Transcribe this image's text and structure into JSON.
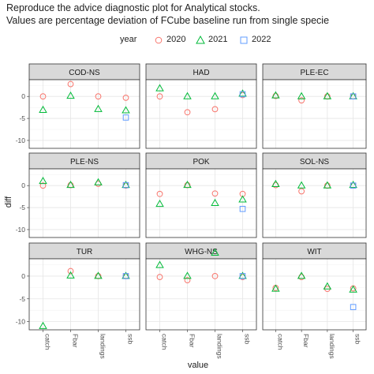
{
  "title": {
    "line1": "Reproduce the advice diagnostic plot for Analytical stocks.",
    "line2": "Values are percentage deviation of FCube baseline run from single specie"
  },
  "legend": {
    "title": "year",
    "items": [
      {
        "label": "2020",
        "shape": "circle",
        "color": "#f8766d"
      },
      {
        "label": "2021",
        "shape": "triangle",
        "color": "#00ba38"
      },
      {
        "label": "2022",
        "shape": "square",
        "color": "#619cff"
      }
    ]
  },
  "chart_data": {
    "type": "scatter",
    "facet_layout": "3x3 grid, shared axes",
    "xlabel": "value",
    "ylabel": "diff",
    "categories": [
      "catch",
      "Fbar",
      "landings",
      "ssb"
    ],
    "ylim": [
      -11.8,
      3.8
    ],
    "yticks": [
      0,
      -5,
      -10
    ],
    "grid": true,
    "series_names": [
      "2020",
      "2021",
      "2022"
    ],
    "panels": [
      {
        "name": "COD-NS",
        "points": [
          {
            "year": "2020",
            "values": [
              0,
              2.8,
              0,
              -0.3
            ]
          },
          {
            "year": "2021",
            "values": [
              -3.1,
              0.1,
              -2.9,
              -3.2
            ]
          },
          {
            "year": "2022",
            "values": [
              null,
              null,
              null,
              -4.8
            ]
          }
        ]
      },
      {
        "name": "HAD",
        "points": [
          {
            "year": "2020",
            "values": [
              0,
              -3.6,
              -2.9,
              0.3
            ]
          },
          {
            "year": "2021",
            "values": [
              1.8,
              0,
              0,
              0.6
            ]
          },
          {
            "year": "2022",
            "values": [
              null,
              null,
              null,
              0.5
            ]
          }
        ]
      },
      {
        "name": "PLE-EC",
        "points": [
          {
            "year": "2020",
            "values": [
              0.1,
              -0.9,
              0,
              0
            ]
          },
          {
            "year": "2021",
            "values": [
              0.2,
              0,
              0,
              0
            ]
          },
          {
            "year": "2022",
            "values": [
              null,
              null,
              null,
              0
            ]
          }
        ]
      },
      {
        "name": "PLE-NS",
        "points": [
          {
            "year": "2020",
            "values": [
              0,
              0.1,
              0.4,
              0
            ]
          },
          {
            "year": "2021",
            "values": [
              1,
              0.1,
              0.7,
              0.1
            ]
          },
          {
            "year": "2022",
            "values": [
              null,
              null,
              null,
              0.1
            ]
          }
        ]
      },
      {
        "name": "POK",
        "points": [
          {
            "year": "2020",
            "values": [
              -1.9,
              0.1,
              -1.8,
              -1.9
            ]
          },
          {
            "year": "2021",
            "values": [
              -4.2,
              0.1,
              -4,
              -3.2
            ]
          },
          {
            "year": "2022",
            "values": [
              null,
              null,
              null,
              -5.3
            ]
          }
        ]
      },
      {
        "name": "SOL-NS",
        "points": [
          {
            "year": "2020",
            "values": [
              0.1,
              -1.3,
              0,
              0
            ]
          },
          {
            "year": "2021",
            "values": [
              0.3,
              0,
              0,
              0.1
            ]
          },
          {
            "year": "2022",
            "values": [
              null,
              null,
              null,
              0
            ]
          }
        ]
      },
      {
        "name": "TUR",
        "points": [
          {
            "year": "2020",
            "values": [
              null,
              1.1,
              0,
              0
            ]
          },
          {
            "year": "2021",
            "values": [
              -11,
              0.1,
              0,
              0
            ]
          },
          {
            "year": "2022",
            "values": [
              null,
              null,
              null,
              0
            ]
          }
        ]
      },
      {
        "name": "WHG-NS",
        "points": [
          {
            "year": "2020",
            "values": [
              -0.2,
              -0.9,
              0,
              -0.2
            ]
          },
          {
            "year": "2021",
            "values": [
              2.4,
              0,
              5.1,
              0
            ]
          },
          {
            "year": "2022",
            "values": [
              null,
              null,
              null,
              0
            ]
          }
        ]
      },
      {
        "name": "WIT",
        "points": [
          {
            "year": "2020",
            "values": [
              -2.6,
              -0.2,
              -2.8,
              -2.7
            ]
          },
          {
            "year": "2021",
            "values": [
              -2.8,
              0,
              -2.3,
              -3
            ]
          },
          {
            "year": "2022",
            "values": [
              null,
              null,
              null,
              -6.8
            ]
          }
        ]
      }
    ]
  }
}
